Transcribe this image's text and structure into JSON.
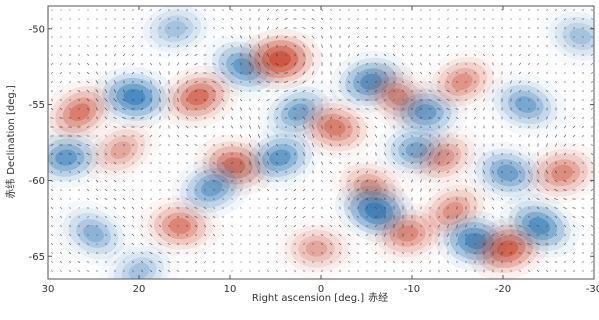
{
  "chart_data": {
    "type": "heatmap",
    "xlabel": "Right ascension [deg.]",
    "xlabel_suffix": "赤经",
    "ylabel": "Declination [deg.]",
    "ylabel_prefix": "赤纬",
    "x_ticks": [
      30,
      20,
      10,
      0,
      -10,
      -20,
      -30
    ],
    "x_tick_labels": [
      "30",
      "20",
      "10",
      "0",
      "-10",
      "-20",
      "-30"
    ],
    "y_ticks": [
      -50,
      -55,
      -60,
      -65
    ],
    "y_tick_labels": [
      "-50",
      "-55",
      "-60",
      "-65"
    ],
    "xlim": [
      30,
      -30
    ],
    "ylim": [
      -66.5,
      -48.5
    ],
    "colors": {
      "positive": "#c8442a",
      "negative": "#1f6fb0",
      "vector": "#222222"
    },
    "features": [
      {
        "x": 26.5,
        "y": -55.5,
        "amp": 0.6
      },
      {
        "x": 20.5,
        "y": -54.5,
        "amp": -0.8
      },
      {
        "x": 13.5,
        "y": -54.5,
        "amp": 0.7
      },
      {
        "x": 8.5,
        "y": -52.5,
        "amp": -0.6
      },
      {
        "x": 4.5,
        "y": -52.0,
        "amp": 1.0
      },
      {
        "x": 2.5,
        "y": -55.5,
        "amp": -0.5
      },
      {
        "x": -1.5,
        "y": -56.5,
        "amp": 0.6
      },
      {
        "x": -5.5,
        "y": -53.5,
        "amp": -0.7
      },
      {
        "x": -8.5,
        "y": -54.5,
        "amp": 0.5
      },
      {
        "x": -11.5,
        "y": -55.5,
        "amp": -0.55
      },
      {
        "x": -15.5,
        "y": -53.5,
        "amp": 0.45
      },
      {
        "x": -22.5,
        "y": -55.0,
        "amp": -0.5
      },
      {
        "x": 28.0,
        "y": -58.5,
        "amp": -0.6
      },
      {
        "x": 22.0,
        "y": -58.0,
        "amp": 0.35
      },
      {
        "x": 9.5,
        "y": -59.0,
        "amp": 0.7
      },
      {
        "x": 4.5,
        "y": -58.5,
        "amp": -0.6
      },
      {
        "x": -5.5,
        "y": -60.5,
        "amp": 0.45
      },
      {
        "x": -10.5,
        "y": -58.0,
        "amp": -0.5
      },
      {
        "x": -13.5,
        "y": -58.5,
        "amp": 0.4
      },
      {
        "x": -20.5,
        "y": -59.5,
        "amp": -0.55
      },
      {
        "x": -26.5,
        "y": -59.5,
        "amp": 0.5
      },
      {
        "x": 25.0,
        "y": -63.5,
        "amp": -0.4
      },
      {
        "x": 15.5,
        "y": -63.0,
        "amp": 0.55
      },
      {
        "x": 12.0,
        "y": -60.5,
        "amp": -0.55
      },
      {
        "x": -6.0,
        "y": -62.0,
        "amp": -0.9
      },
      {
        "x": -9.5,
        "y": -63.5,
        "amp": 0.5
      },
      {
        "x": -14.5,
        "y": -62.0,
        "amp": 0.45
      },
      {
        "x": -17.0,
        "y": -64.0,
        "amp": -0.8
      },
      {
        "x": -20.5,
        "y": -64.5,
        "amp": 0.8
      },
      {
        "x": -24.0,
        "y": -63.0,
        "amp": -0.7
      },
      {
        "x": 0.5,
        "y": -64.5,
        "amp": 0.35
      },
      {
        "x": 20.0,
        "y": -66.0,
        "amp": -0.3
      },
      {
        "x": -28.5,
        "y": -50.5,
        "amp": -0.3
      },
      {
        "x": 16.0,
        "y": -50.0,
        "amp": -0.3
      }
    ]
  }
}
